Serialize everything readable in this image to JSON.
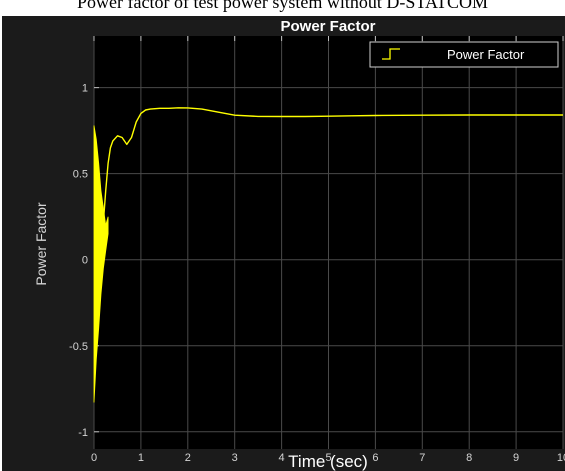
{
  "caption": "Power factor of test power system without D-STATCOM",
  "colors": {
    "background": "#1b1b1b",
    "plot_background": "#000000",
    "grid": "#4a4a4a",
    "axis_text": "#d4d4d4",
    "title_text": "#ffffff",
    "series": "#ffff00"
  },
  "chart_data": {
    "type": "line",
    "title": "Power Factor",
    "xlabel": "Time (sec)",
    "ylabel": "Power Factor",
    "xlim": [
      0,
      10
    ],
    "ylim": [
      -1.1,
      1.3
    ],
    "xticks": [
      0,
      1,
      2,
      3,
      4,
      5,
      6,
      7,
      8,
      9,
      10
    ],
    "yticks": [
      -1,
      -0.5,
      0,
      0.5,
      1
    ],
    "xtick_labels": [
      "0",
      "1",
      "2",
      "3",
      "4",
      "5",
      "6",
      "7",
      "8",
      "9",
      "10"
    ],
    "ytick_labels": [
      "-1",
      "-0.5",
      "0",
      "0.5",
      "1"
    ],
    "grid": true,
    "legend_position": "top-right",
    "series": [
      {
        "name": "Power Factor",
        "color": "#ffff00",
        "x": [
          0.05,
          0.1,
          0.15,
          0.2,
          0.25,
          0.3,
          0.35,
          0.4,
          0.5,
          0.6,
          0.7,
          0.8,
          0.9,
          1.0,
          1.1,
          1.2,
          1.4,
          1.6,
          1.8,
          2.0,
          2.3,
          2.6,
          3.0,
          3.5,
          4.0,
          4.5,
          5.0,
          5.5,
          6.0,
          7.0,
          8.0,
          9.0,
          10.0
        ],
        "y": [
          0.4,
          0.18,
          0.14,
          0.22,
          0.4,
          0.56,
          0.65,
          0.69,
          0.72,
          0.71,
          0.67,
          0.71,
          0.8,
          0.85,
          0.87,
          0.875,
          0.88,
          0.88,
          0.883,
          0.882,
          0.875,
          0.86,
          0.84,
          0.833,
          0.832,
          0.832,
          0.834,
          0.836,
          0.838,
          0.84,
          0.841,
          0.841,
          0.841
        ],
        "transient": {
          "x_start": 0.0,
          "x_end": 0.3,
          "upper": [
            0.78,
            0.7,
            0.56,
            0.4,
            0.3,
            0.2,
            0.25
          ],
          "lower": [
            -0.83,
            -0.58,
            -0.4,
            -0.2,
            -0.05,
            0.05,
            0.15
          ]
        }
      }
    ]
  }
}
